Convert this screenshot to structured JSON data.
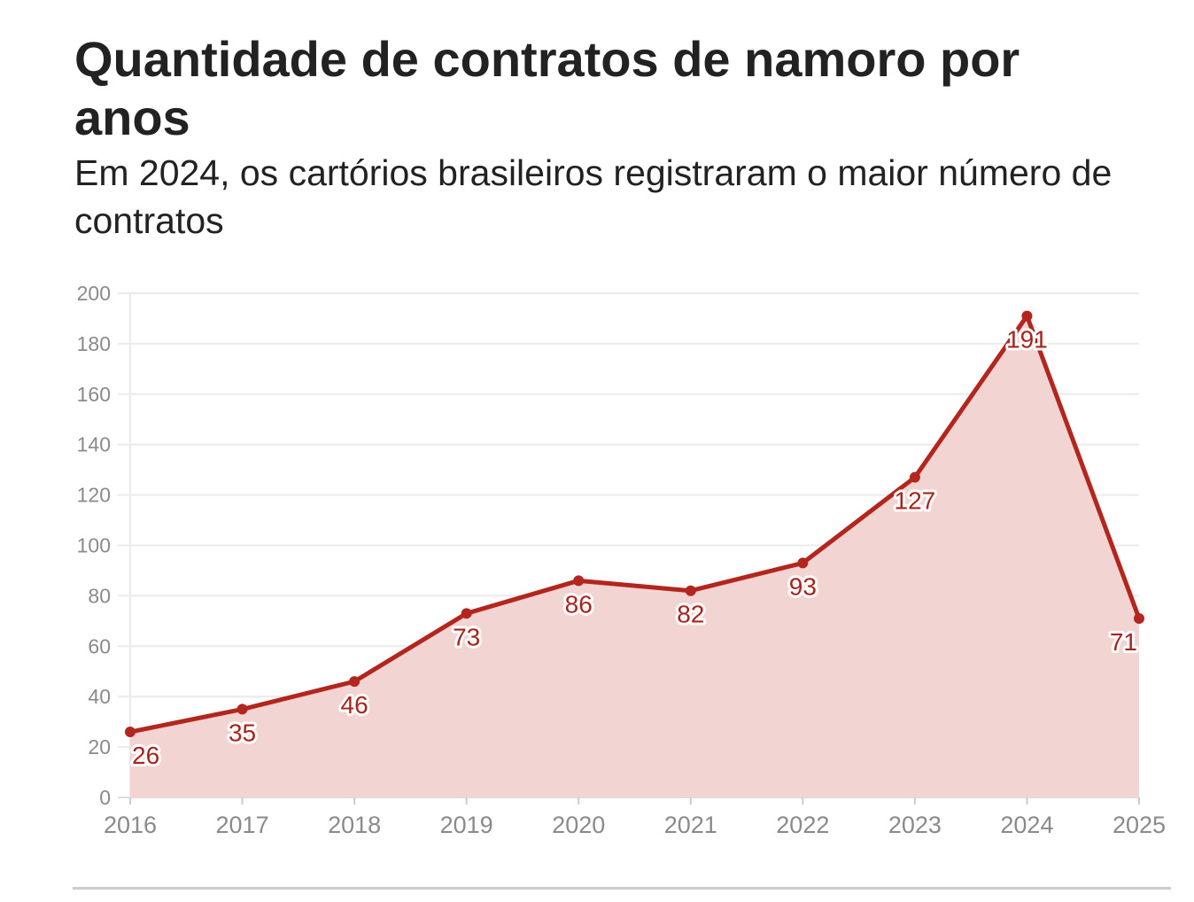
{
  "header": {
    "title": "Quantidade de contratos de namoro por anos",
    "subtitle": "Em 2024, os cartórios brasileiros registraram o maior número de contratos"
  },
  "chart_data": {
    "type": "area",
    "title": "Quantidade de contratos de namoro por anos",
    "subtitle": "Em 2024, os cartórios brasileiros registraram o maior número de contratos",
    "xlabel": "",
    "ylabel": "",
    "categories": [
      "2016",
      "2017",
      "2018",
      "2019",
      "2020",
      "2021",
      "2022",
      "2023",
      "2024",
      "2025"
    ],
    "values": [
      26,
      35,
      46,
      73,
      86,
      82,
      93,
      127,
      191,
      71
    ],
    "ylim": [
      0,
      200
    ],
    "yticks": [
      "0",
      "20",
      "40",
      "60",
      "80",
      "100",
      "120",
      "140",
      "160",
      "180",
      "200"
    ],
    "grid": true,
    "legend": "none",
    "colors": {
      "line": "#b3261e",
      "fill": "#f2d4d3",
      "label": "#a8231c",
      "grid": "#ebebeb",
      "tick": "#8a8a8a"
    }
  }
}
